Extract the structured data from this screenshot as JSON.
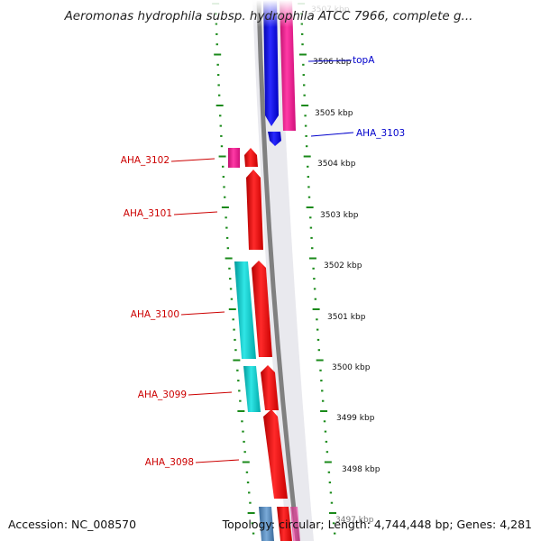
{
  "title": "Aeromonas hydrophila subsp. hydrophila ATCC 7966, complete g...",
  "footer": {
    "accession": "Accession: NC_008570",
    "summary": "Topology: circular; Length: 4,744,448 bp; Genes: 4,281"
  },
  "colors": {
    "forward_label": "#cc0000",
    "reverse_label": "#0000cc",
    "red_gene": "#ff1a1a",
    "pink_gene": "#ff1493",
    "blue_gene": "#1010ee",
    "cyan_gene": "#00c8c8",
    "tick": "#1a8a1a",
    "backbone": "#808080"
  },
  "ruler_labels": [
    "3506 kbp",
    "3505 kbp",
    "3504 kbp",
    "3503 kbp",
    "3502 kbp",
    "3501 kbp",
    "3500 kbp",
    "3499 kbp",
    "3498 kbp"
  ],
  "gene_labels": [
    {
      "text": "topA",
      "side": "right",
      "color": "blue"
    },
    {
      "text": "AHA_3103",
      "side": "right",
      "color": "blue"
    },
    {
      "text": "AHA_3102",
      "side": "left",
      "color": "red"
    },
    {
      "text": "AHA_3101",
      "side": "left",
      "color": "red"
    },
    {
      "text": "AHA_3100",
      "side": "left",
      "color": "red"
    },
    {
      "text": "AHA_3099",
      "side": "left",
      "color": "red"
    },
    {
      "text": "AHA_3098",
      "side": "left",
      "color": "red"
    }
  ]
}
